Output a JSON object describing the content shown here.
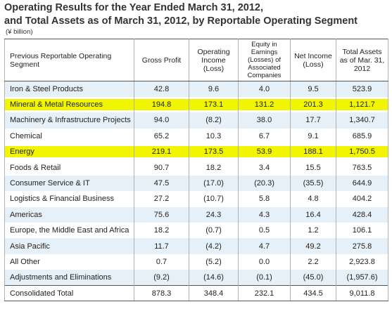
{
  "title": {
    "line1": "Operating Results for the Year Ended March 31, 2012,",
    "line2": "and Total Assets as of March 31, 2012, by Reportable Operating Segment"
  },
  "unit_label": "(¥ billion)",
  "headers": {
    "segment": "Previous Reportable Operating Segment",
    "gross_profit": "Gross Profit",
    "operating_income": "Operating Income (Loss)",
    "equity_in_earnings": "Equity in Earnings (Losses) of Associated Companies",
    "net_income": "Net Income (Loss)",
    "total_assets": "Total Assets as of Mar. 31, 2012"
  },
  "rows": [
    {
      "segment": "Iron & Steel Products",
      "gross_profit": "42.8",
      "operating_income": "9.6",
      "equity": "4.0",
      "net_income": "9.5",
      "total_assets": "523.9",
      "highlighted": false
    },
    {
      "segment": "Mineral & Metal Resources",
      "gross_profit": "194.8",
      "operating_income": "173.1",
      "equity": "131.2",
      "net_income": "201.3",
      "total_assets": "1,121.7",
      "highlighted": true
    },
    {
      "segment": "Machinery & Infrastructure Projects",
      "gross_profit": "94.0",
      "operating_income": "(8.2)",
      "equity": "38.0",
      "net_income": "17.7",
      "total_assets": "1,340.7",
      "highlighted": false
    },
    {
      "segment": "Chemical",
      "gross_profit": "65.2",
      "operating_income": "10.3",
      "equity": "6.7",
      "net_income": "9.1",
      "total_assets": "685.9",
      "highlighted": false
    },
    {
      "segment": "Energy",
      "gross_profit": "219.1",
      "operating_income": "173.5",
      "equity": "53.9",
      "net_income": "188.1",
      "total_assets": "1,750.5",
      "highlighted": true
    },
    {
      "segment": "Foods & Retail",
      "gross_profit": "90.7",
      "operating_income": "18.2",
      "equity": "3.4",
      "net_income": "15.5",
      "total_assets": "763.5",
      "highlighted": false
    },
    {
      "segment": "Consumer Service & IT",
      "gross_profit": "47.5",
      "operating_income": "(17.0)",
      "equity": "(20.3)",
      "net_income": "(35.5)",
      "total_assets": "644.9",
      "highlighted": false
    },
    {
      "segment": "Logistics & Financial Business",
      "gross_profit": "27.2",
      "operating_income": "(10.7)",
      "equity": "5.8",
      "net_income": "4.8",
      "total_assets": "404.2",
      "highlighted": false
    },
    {
      "segment": "Americas",
      "gross_profit": "75.6",
      "operating_income": "24.3",
      "equity": "4.3",
      "net_income": "16.4",
      "total_assets": "428.4",
      "highlighted": false
    },
    {
      "segment": "Europe, the Middle East and Africa",
      "gross_profit": "18.2",
      "operating_income": "(0.7)",
      "equity": "0.5",
      "net_income": "1.2",
      "total_assets": "106.1",
      "highlighted": false
    },
    {
      "segment": "Asia Pacific",
      "gross_profit": "11.7",
      "operating_income": "(4.2)",
      "equity": "4.7",
      "net_income": "49.2",
      "total_assets": "275.8",
      "highlighted": false
    },
    {
      "segment": "All Other",
      "gross_profit": "0.7",
      "operating_income": "(5.2)",
      "equity": "0.0",
      "net_income": "2.2",
      "total_assets": "2,923.8",
      "highlighted": false
    },
    {
      "segment": "Adjustments and Eliminations",
      "gross_profit": "(9.2)",
      "operating_income": "(14.6)",
      "equity": "(0.1)",
      "net_income": "(45.0)",
      "total_assets": "(1,957.6)",
      "highlighted": false
    }
  ],
  "total": {
    "segment": "Consolidated Total",
    "gross_profit": "878.3",
    "operating_income": "348.4",
    "equity": "232.1",
    "net_income": "434.5",
    "total_assets": "9,011.8"
  },
  "colors": {
    "highlight": "#f2f500",
    "row_shade": "#e6f0f8",
    "rule": "#555555"
  }
}
